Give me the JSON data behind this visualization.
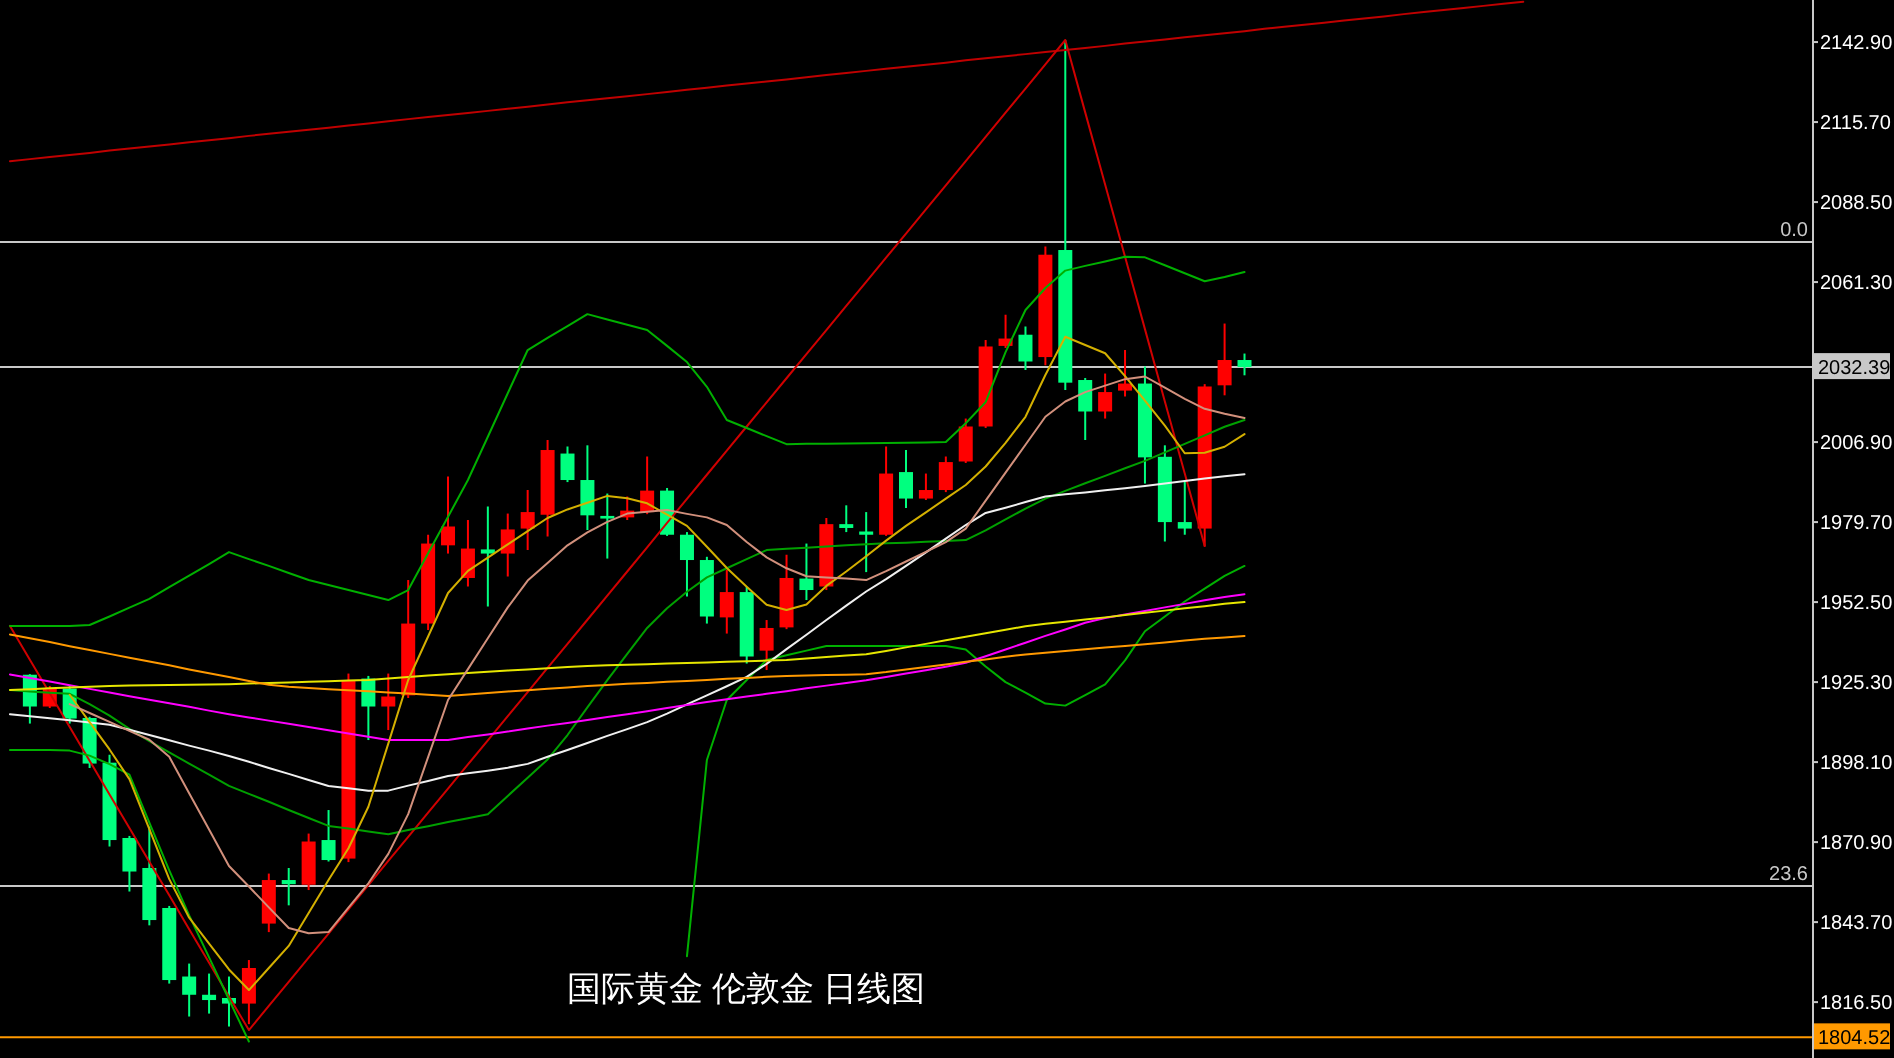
{
  "chart_data": {
    "type": "candlestick",
    "title": "国际黄金 伦敦金 日线图",
    "categories": [
      null,
      null,
      null,
      null,
      null,
      null,
      null,
      null,
      null,
      null,
      null,
      null,
      null,
      null,
      null,
      null,
      null,
      null,
      null,
      null,
      null,
      null,
      null,
      null,
      null,
      null,
      null,
      null,
      null,
      null,
      null,
      null,
      null,
      null,
      null,
      null,
      null,
      null,
      null,
      null,
      null,
      null,
      null,
      null,
      null,
      null,
      null,
      null,
      null,
      null,
      null,
      null,
      null,
      null,
      null,
      null,
      null,
      null,
      null,
      null,
      null,
      null,
      null,
      null,
      null,
      null,
      null,
      null,
      null,
      null,
      null,
      null,
      null,
      null,
      null,
      null,
      null,
      null,
      null,
      null,
      null,
      null,
      null,
      null,
      null,
      null,
      null,
      null,
      null,
      null,
      null
    ],
    "annotations": [
      {
        "text": "0.0",
        "y": 2074.9
      },
      {
        "text": "23.6",
        "y": 1856.0
      }
    ],
    "ohlc": [
      null,
      [
        1927.8,
        1928.0,
        1911.2,
        1917.0
      ],
      [
        1917.0,
        1924.0,
        1916.5,
        1923.3
      ],
      [
        1923.1,
        1924.0,
        1911.2,
        1912.9
      ],
      [
        1913.1,
        1913.5,
        1896.1,
        1897.6
      ],
      [
        1897.9,
        1900.6,
        1869.4,
        1871.6
      ],
      [
        1872.3,
        1873.0,
        1854.1,
        1860.9
      ],
      [
        1862.1,
        1876.2,
        1842.6,
        1844.4
      ],
      [
        1848.5,
        1849.2,
        1822.8,
        1824.0
      ],
      [
        1825.2,
        1829.6,
        1811.6,
        1819.0
      ],
      [
        1819.0,
        1826.2,
        1812.6,
        1817.2
      ],
      [
        1817.9,
        1825.2,
        1808.2,
        1816.0
      ],
      [
        1816.0,
        1830.8,
        1809.0,
        1828.1
      ],
      [
        1843.2,
        1860.2,
        1840.3,
        1858.0
      ],
      [
        1858.0,
        1862.1,
        1849.4,
        1856.6
      ],
      [
        1856.4,
        1873.8,
        1854.6,
        1871.1
      ],
      [
        1871.6,
        1881.8,
        1864.3,
        1864.8
      ],
      [
        1865.3,
        1928.2,
        1864.1,
        1926.0
      ],
      [
        1926.5,
        1927.4,
        1905.6,
        1917.0
      ],
      [
        1917.0,
        1928.2,
        1909.0,
        1920.4
      ],
      [
        1920.8,
        1960.0,
        1919.9,
        1945.2
      ],
      [
        1945.2,
        1975.4,
        1943.0,
        1972.4
      ],
      [
        1971.8,
        1995.2,
        1969.0,
        1978.2
      ],
      [
        1960.7,
        1980.4,
        1957.8,
        1970.7
      ],
      [
        1970.4,
        1985.0,
        1951.0,
        1969.0
      ],
      [
        1969.0,
        1982.6,
        1961.2,
        1977.2
      ],
      [
        1977.5,
        1990.6,
        1970.2,
        1983.1
      ],
      [
        1982.2,
        2007.6,
        1974.8,
        2004.2
      ],
      [
        2003.0,
        2005.4,
        1993.3,
        1994.0
      ],
      [
        1994.0,
        2005.8,
        1977.0,
        1982.0
      ],
      [
        1981.8,
        1989.4,
        1967.3,
        1980.9
      ],
      [
        1981.3,
        1988.4,
        1980.4,
        1983.6
      ],
      [
        1983.1,
        2002.0,
        1982.4,
        1990.4
      ],
      [
        1990.4,
        1991.3,
        1975.0,
        1975.4
      ],
      [
        1975.4,
        1976.3,
        1954.4,
        1966.8
      ],
      [
        1966.8,
        1967.9,
        1945.2,
        1947.6
      ],
      [
        1947.3,
        1963.4,
        1941.8,
        1955.9
      ],
      [
        1955.9,
        1957.8,
        1931.6,
        1934.0
      ],
      [
        1936.0,
        1946.4,
        1929.4,
        1943.7
      ],
      [
        1943.9,
        1968.6,
        1943.3,
        1960.7
      ],
      [
        1960.5,
        1972.4,
        1953.2,
        1956.6
      ],
      [
        1957.8,
        1981.1,
        1956.6,
        1979.0
      ],
      [
        1979.0,
        1985.4,
        1976.3,
        1977.7
      ],
      [
        1976.5,
        1983.1,
        1962.7,
        1975.4
      ],
      [
        1975.4,
        2005.4,
        1975.0,
        1996.2
      ],
      [
        1996.7,
        2004.2,
        1984.5,
        1987.7
      ],
      [
        1987.7,
        1996.2,
        1987.2,
        1990.6
      ],
      [
        1990.6,
        2002.0,
        1989.9,
        2000.1
      ],
      [
        2000.3,
        2014.9,
        1999.8,
        2012.2
      ],
      [
        2012.2,
        2041.6,
        2011.7,
        2039.4
      ],
      [
        2039.6,
        2050.2,
        2038.9,
        2042.1
      ],
      [
        2043.4,
        2046.2,
        2031.4,
        2034.3
      ],
      [
        2035.8,
        2073.4,
        2033.0,
        2070.6
      ],
      [
        2072.2,
        2143.6,
        2024.6,
        2027.1
      ],
      [
        2028.0,
        2028.7,
        2007.6,
        2017.3
      ],
      [
        2017.3,
        2030.2,
        2014.9,
        2023.9
      ],
      [
        2024.4,
        2038.2,
        2022.4,
        2026.8
      ],
      [
        2026.8,
        2032.6,
        1992.8,
        2001.7
      ],
      [
        2001.9,
        2005.8,
        1973.1,
        1979.7
      ],
      [
        1979.7,
        1994.0,
        1975.4,
        1977.5
      ],
      [
        1977.5,
        2026.6,
        1971.4,
        2025.8
      ],
      [
        2026.2,
        2047.2,
        2022.8,
        2034.8
      ],
      [
        2034.8,
        2037.0,
        2029.6,
        2032.4
      ],
      null,
      null,
      null,
      null,
      null,
      null,
      null,
      null,
      null,
      null,
      null,
      null,
      null,
      null,
      null,
      null,
      null,
      null,
      null,
      null,
      null,
      null,
      null,
      null,
      null,
      null,
      null,
      null
    ],
    "colors": [
      null,
      "#00ff7f",
      "#ff0000",
      "#00ff7f",
      "#00ff7f",
      "#00ff7f",
      "#00ff7f",
      "#00ff7f",
      "#00ff7f",
      "#00ff7f",
      "#00ff7f",
      "#00ff7f",
      "#ff0000",
      "#ff0000",
      "#00ff7f",
      "#ff0000",
      "#00ff7f",
      "#ff0000",
      "#00ff7f",
      "#ff0000",
      "#ff0000",
      "#ff0000",
      "#ff0000",
      "#ff0000",
      "#00ff7f",
      "#ff0000",
      "#ff0000",
      "#ff0000",
      "#00ff7f",
      "#00ff7f",
      "#00ff7f",
      "#ff0000",
      "#ff0000",
      "#00ff7f",
      "#00ff7f",
      "#00ff7f",
      "#ff0000",
      "#00ff7f",
      "#ff0000",
      "#ff0000",
      "#00ff7f",
      "#ff0000",
      "#00ff7f",
      "#00ff7f",
      "#ff0000",
      "#00ff7f",
      "#ff0000",
      "#ff0000",
      "#ff0000",
      "#ff0000",
      "#ff0000",
      "#00ff7f",
      "#ff0000",
      "#00ff7f",
      "#00ff7f",
      "#ff0000",
      "#ff0000",
      "#00ff7f",
      "#00ff7f",
      "#00ff7f",
      "#ff0000",
      "#ff0000",
      "#00ff7f",
      null,
      null,
      null,
      null,
      null,
      null,
      null,
      null,
      null,
      null,
      null,
      null,
      null,
      null,
      null,
      null,
      null,
      null,
      null,
      null,
      null,
      null,
      null,
      null,
      null,
      null,
      null,
      null
    ],
    "series": [
      {
        "type": "line",
        "color": "#c00000",
        "values": [
          2102.4,
          2103.1,
          2103.8,
          2104.5,
          2105.2,
          2106.0,
          2106.7,
          2107.4,
          2108.1,
          2108.8,
          2109.5,
          2110.2,
          2111.0,
          2111.7,
          2112.4,
          2113.1,
          2113.8,
          2114.5,
          2115.2,
          2116.0,
          2116.7,
          2117.4,
          2118.1,
          2118.8,
          2119.5,
          2120.2,
          2120.9,
          2121.7,
          2122.4,
          2123.1,
          2123.8,
          2124.5,
          2125.2,
          2125.9,
          2126.7,
          2127.4,
          2128.1,
          2128.8,
          2129.5,
          2130.2,
          2130.9,
          2131.7,
          2132.4,
          2133.1,
          2133.8,
          2134.5,
          2135.2,
          2135.9,
          2136.7,
          2137.4,
          2138.1,
          2138.8,
          2139.5,
          2140.2,
          2140.9,
          2141.6,
          2142.4,
          2143.1,
          2143.8,
          2144.5,
          2145.2,
          2145.9,
          2146.6,
          2147.4,
          2148.1,
          2148.8,
          2149.5,
          2150.2,
          2150.9,
          2151.6,
          2152.4,
          2153.1,
          2153.8,
          2154.5,
          2155.2,
          2155.9,
          2156.6,
          null,
          null,
          null,
          null,
          null,
          null,
          null,
          null,
          null,
          null,
          null,
          null,
          null,
          null
        ]
      },
      {
        "type": "line",
        "color": "#d00000",
        "values": [
          1944.4,
          1932.9,
          1921.5,
          1910.0,
          1898.6,
          1887.1,
          1875.7,
          1864.2,
          1852.8,
          1841.3,
          1829.9,
          1818.4,
          1807.0,
          1815.2,
          1823.4,
          1831.6,
          1839.8,
          1848.0,
          1856.3,
          1864.5,
          1872.7,
          1880.9,
          1889.1,
          1897.3,
          1905.5,
          1913.7,
          1921.9,
          1930.1,
          1938.3,
          1946.5,
          1954.7,
          1962.9,
          1971.1,
          1979.4,
          1987.6,
          1995.8,
          2004.0,
          2012.2,
          2020.4,
          2028.6,
          2036.8,
          2045.0,
          2053.2,
          2061.4,
          2069.6,
          2077.8,
          2086.0,
          2094.2,
          2102.4,
          2110.7,
          2118.9,
          2127.1,
          2135.3,
          2143.6,
          2119.0,
          2094.5,
          2069.9,
          2045.3,
          2020.7,
          1996.2,
          1971.6,
          null,
          null,
          null,
          null,
          null,
          null,
          null,
          null,
          null,
          null,
          null,
          null,
          null,
          null,
          null,
          null,
          null,
          null,
          null,
          null,
          null,
          null,
          null,
          null,
          null,
          null,
          null,
          null,
          null,
          null
        ]
      },
      {
        "type": "line",
        "color": "#00b000",
        "values": [
          1944.4,
          1944.4,
          1944.4,
          1944.4,
          1944.7,
          1947.6,
          1950.6,
          1953.6,
          1957.6,
          1961.5,
          1965.4,
          1969.5,
          1967.1,
          1964.8,
          1962.4,
          1960.0,
          1958.3,
          1956.6,
          1954.9,
          1953.2,
          1956.6,
          1969.1,
          1981.5,
          1994.0,
          2008.7,
          2023.5,
          2038.2,
          2042.3,
          2046.3,
          2050.4,
          2048.6,
          2046.8,
          2045.0,
          2039.6,
          2034.1,
          2025.7,
          2014.4,
          2011.7,
          2008.9,
          2006.2,
          2006.3,
          2006.3,
          2006.4,
          2006.5,
          2006.6,
          2006.7,
          2006.8,
          2006.9,
          2013.3,
          2020.5,
          2037.5,
          2051.8,
          2059.3,
          2065.2,
          2066.8,
          2068.3,
          2069.9,
          2069.7,
          2067.0,
          2064.3,
          2061.6,
          2063.0,
          2064.7,
          null,
          null,
          null,
          null,
          null,
          null,
          null,
          null,
          null,
          null,
          null,
          null,
          null,
          null,
          null,
          null,
          null,
          null,
          null,
          null,
          null,
          null,
          null,
          null,
          null,
          null,
          null,
          null
        ]
      },
      {
        "type": "line",
        "color": "#00a000",
        "values": [
          1922.6,
          1922.1,
          1921.7,
          1921.3,
          1917.8,
          1913.9,
          1909.4,
          1905.2,
          1901.4,
          1897.6,
          1893.8,
          1890.0,
          1887.3,
          1884.6,
          1881.8,
          1879.1,
          1876.4,
          1875.5,
          1874.5,
          1873.6,
          1875.0,
          1876.3,
          1877.7,
          1879.0,
          1880.4,
          1886.6,
          1892.8,
          1899.0,
          1907.3,
          1916.7,
          1926.0,
          1934.9,
          1943.7,
          1950.4,
          1956.0,
          1960.9,
          1964.0,
          1967.1,
          1970.2,
          1970.6,
          1971.0,
          1971.4,
          1971.8,
          1972.2,
          1972.5,
          1972.7,
          1973.0,
          1973.3,
          1973.6,
          1976.9,
          1980.6,
          1984.3,
          1987.7,
          1990.3,
          1992.9,
          1995.4,
          1998.0,
          2000.5,
          2003.4,
          2006.3,
          2009.2,
          2012.1,
          2014.4,
          null,
          null,
          null,
          null,
          null,
          null,
          null,
          null,
          null,
          null,
          null,
          null,
          null,
          null,
          null,
          null,
          null,
          null,
          null,
          null,
          null,
          null,
          null,
          null,
          null,
          null,
          null,
          null
        ]
      },
      {
        "type": "line",
        "color": "#00b000",
        "values": [
          1902.2,
          1902.2,
          1902.2,
          1902.0,
          1900.3,
          1897.4,
          1893.8,
          1877.5,
          1861.3,
          1846.0,
          1831.7,
          1817.4,
          1803.1,
          null,
          null,
          null,
          null,
          null,
          null,
          null,
          null,
          null,
          null,
          null,
          null,
          null,
          null,
          null,
          null,
          null,
          null,
          null,
          null,
          null,
          1832.1,
          1898.8,
          1919.2,
          1926.0,
          1932.8,
          1934.4,
          1936.0,
          1937.6,
          1937.6,
          1937.6,
          1937.6,
          1937.6,
          1937.6,
          1937.6,
          1936.4,
          1930.6,
          1925.3,
          1921.7,
          1918.0,
          1917.3,
          1920.9,
          1924.5,
          1932.7,
          1942.6,
          1947.6,
          1952.7,
          1957.1,
          1961.4,
          1964.8,
          null,
          null,
          null,
          null,
          null,
          null,
          null,
          null,
          null,
          null,
          null,
          null,
          null,
          null,
          null,
          null,
          null,
          null,
          null,
          null,
          null,
          null,
          null,
          null,
          null,
          null,
          null,
          null
        ]
      },
      {
        "type": "line",
        "color": "#f0f0f0",
        "values": [
          1914.4,
          1913.7,
          1913.0,
          1912.3,
          1911.6,
          1910.8,
          1909.1,
          1907.3,
          1905.5,
          1903.7,
          1902.0,
          1900.2,
          1898.2,
          1896.1,
          1894.1,
          1892.0,
          1890.0,
          1889.2,
          1888.4,
          1888.4,
          1890.1,
          1891.7,
          1893.4,
          1894.3,
          1895.2,
          1896.2,
          1897.5,
          1899.9,
          1902.2,
          1904.6,
          1907.0,
          1909.3,
          1911.7,
          1914.6,
          1917.7,
          1920.8,
          1923.9,
          1927.1,
          1931.5,
          1936.5,
          1941.4,
          1946.4,
          1951.3,
          1956.1,
          1960.3,
          1964.8,
          1969.4,
          1974.1,
          1978.7,
          1982.8,
          1984.6,
          1986.5,
          1988.4,
          1989.2,
          1989.8,
          1990.5,
          1991.2,
          1992.0,
          1992.8,
          1993.7,
          1994.5,
          1995.3,
          1996.0,
          null,
          null,
          null,
          null,
          null,
          null,
          null,
          null,
          null,
          null,
          null,
          null,
          null,
          null,
          null,
          null,
          null,
          null,
          null,
          null,
          null,
          null,
          null,
          null,
          null,
          null,
          null,
          null
        ]
      },
      {
        "type": "line",
        "color": "#ff00ff",
        "values": [
          1927.9,
          1926.7,
          1925.5,
          1924.2,
          1923.0,
          1921.8,
          1920.5,
          1919.3,
          1918.1,
          1916.9,
          1915.6,
          1914.4,
          1913.3,
          1912.2,
          1911.1,
          1910.0,
          1908.9,
          1907.8,
          1906.7,
          1905.6,
          1905.6,
          1905.6,
          1905.6,
          1906.6,
          1907.5,
          1908.5,
          1909.5,
          1910.5,
          1911.4,
          1912.4,
          1913.4,
          1914.4,
          1915.4,
          1916.5,
          1917.5,
          1918.5,
          1919.5,
          1920.4,
          1921.3,
          1922.2,
          1923.2,
          1924.1,
          1925.0,
          1925.9,
          1927.0,
          1928.2,
          1929.3,
          1930.5,
          1931.9,
          1934.1,
          1936.4,
          1938.7,
          1941.0,
          1943.2,
          1945.5,
          1947.1,
          1948.3,
          1949.5,
          1950.7,
          1951.9,
          1953.1,
          1954.2,
          1955.2,
          null,
          null,
          null,
          null,
          null,
          null,
          null,
          null,
          null,
          null,
          null,
          null,
          null,
          null,
          null,
          null,
          null,
          null,
          null,
          null,
          null,
          null,
          null,
          null,
          null,
          null,
          null,
          null
        ]
      },
      {
        "type": "line",
        "color": "#e6e600",
        "values": [
          1922.6,
          1922.9,
          1923.2,
          1923.5,
          1923.7,
          1924.0,
          1924.1,
          1924.2,
          1924.3,
          1924.4,
          1924.5,
          1924.6,
          1924.8,
          1925.0,
          1925.2,
          1925.4,
          1925.6,
          1925.8,
          1926.0,
          1926.5,
          1927.0,
          1927.5,
          1928.0,
          1928.4,
          1928.8,
          1929.2,
          1929.6,
          1930.0,
          1930.4,
          1930.8,
          1931.0,
          1931.2,
          1931.4,
          1931.6,
          1931.8,
          1932.0,
          1932.2,
          1932.4,
          1932.6,
          1932.8,
          1933.3,
          1933.8,
          1934.3,
          1934.8,
          1935.9,
          1937.1,
          1938.3,
          1939.5,
          1940.7,
          1941.9,
          1943.1,
          1944.3,
          1945.1,
          1945.8,
          1946.6,
          1947.3,
          1948.1,
          1948.9,
          1949.6,
          1950.4,
          1951.1,
          1951.9,
          1952.5,
          null,
          null,
          null,
          null,
          null,
          null,
          null,
          null,
          null,
          null,
          null,
          null,
          null,
          null,
          null,
          null,
          null,
          null,
          null,
          null,
          null,
          null,
          null,
          null,
          null,
          null,
          null,
          null
        ]
      },
      {
        "type": "line",
        "color": "#ff9900",
        "values": [
          1941.5,
          1940.2,
          1938.9,
          1937.5,
          1936.2,
          1934.9,
          1933.6,
          1932.3,
          1931.0,
          1929.6,
          1928.3,
          1927.0,
          1925.7,
          1924.4,
          1923.7,
          1923.3,
          1922.9,
          1922.5,
          1922.2,
          1921.8,
          1921.4,
          1921.0,
          1920.6,
          1921.1,
          1921.6,
          1922.1,
          1922.5,
          1923.0,
          1923.5,
          1924.0,
          1924.3,
          1924.7,
          1925.0,
          1925.4,
          1925.7,
          1926.0,
          1926.4,
          1926.7,
          1927.1,
          1927.4,
          1927.5,
          1927.7,
          1927.8,
          1928.0,
          1928.7,
          1929.6,
          1930.4,
          1931.3,
          1932.2,
          1933.0,
          1933.9,
          1934.7,
          1935.3,
          1935.9,
          1936.5,
          1937.1,
          1937.6,
          1938.2,
          1938.8,
          1939.4,
          1940.0,
          1940.5,
          1941.0,
          null,
          null,
          null,
          null,
          null,
          null,
          null,
          null,
          null,
          null,
          null,
          null,
          null,
          null,
          null,
          null,
          null,
          null,
          null,
          null,
          null,
          null,
          null,
          null,
          null,
          null,
          null,
          null
        ]
      },
      {
        "type": "line",
        "color": "#d4b000",
        "values": [
          null,
          null,
          null,
          1921.0,
          1911.7,
          1902.4,
          1892.3,
          1875.3,
          1858.3,
          1845.2,
          1836.4,
          1827.6,
          1820.6,
          1828.1,
          1835.6,
          1846.8,
          1858.0,
          1868.8,
          1882.9,
          1904.4,
          1926.0,
          1940.8,
          1955.6,
          1963.1,
          1967.6,
          1972.1,
          1976.6,
          1981.1,
          1984.0,
          1986.3,
          1988.6,
          1987.8,
          1986.1,
          1982.2,
          1978.4,
          1971.3,
          1964.1,
          1957.7,
          1951.6,
          1949.8,
          1951.7,
          1958.0,
          1962.9,
          1968.1,
          1973.4,
          1978.4,
          1983.0,
          1987.7,
          1992.3,
          1998.6,
          2006.6,
          2015.5,
          2029.7,
          2042.7,
          2039.9,
          2037.1,
          2029.3,
          2021.0,
          2012.5,
          2003.1,
          2003.3,
          2005.3,
          2009.6,
          null,
          null,
          null,
          null,
          null,
          null,
          null,
          null,
          null,
          null,
          null,
          null,
          null,
          null,
          null,
          null,
          null,
          null,
          null,
          null,
          null,
          null,
          null,
          null,
          null,
          null,
          null,
          null
        ]
      },
      {
        "type": "line",
        "color": "#d2907c",
        "values": [
          null,
          null,
          null,
          1917.8,
          1914.8,
          1911.8,
          1908.7,
          1905.7,
          1899.9,
          1887.5,
          1875.2,
          1862.8,
          1855.8,
          1848.7,
          1841.7,
          1839.9,
          1840.3,
          1848.6,
          1856.9,
          1866.9,
          1880.4,
          1899.8,
          1919.2,
          1929.7,
          1940.2,
          1950.7,
          1959.8,
          1965.8,
          1971.8,
          1976.2,
          1979.8,
          1982.6,
          1983.2,
          1983.8,
          1982.5,
          1981.3,
          1978.7,
          1972.9,
          1967.7,
          1964.0,
          1961.3,
          1960.9,
          1960.5,
          1960.0,
          1963.0,
          1966.3,
          1969.6,
          1972.9,
          1977.5,
          1987.0,
          1996.5,
          2006.0,
          2015.5,
          2020.7,
          2023.9,
          2026.1,
          2028.3,
          2029.2,
          2025.4,
          2021.6,
          2018.2,
          2016.5,
          2015.1,
          null,
          null,
          null,
          null,
          null,
          null,
          null,
          null,
          null,
          null,
          null,
          null,
          null,
          null,
          null,
          null,
          null,
          null,
          null,
          null,
          null,
          null,
          null,
          null,
          null,
          null,
          null,
          null
        ]
      }
    ],
    "ylim": [
      1797.5,
      2157.2
    ],
    "yticks": [
      {
        "value": 2142.9,
        "label": "2142.90"
      },
      {
        "value": 2115.7,
        "label": "2115.70"
      },
      {
        "value": 2088.5,
        "label": "2088.50"
      },
      {
        "value": 2061.3,
        "label": "2061.30"
      },
      {
        "value": 2006.9,
        "label": "2006.90"
      },
      {
        "value": 1979.7,
        "label": "1979.70"
      },
      {
        "value": 1952.5,
        "label": "1952.50"
      },
      {
        "value": 1925.3,
        "label": "1925.30"
      },
      {
        "value": 1898.1,
        "label": "1898.10"
      },
      {
        "value": 1870.9,
        "label": "1870.90"
      },
      {
        "value": 1843.7,
        "label": "1843.70"
      },
      {
        "value": 1816.5,
        "label": "1816.50"
      }
    ],
    "ref_lines": [
      {
        "axis": "y",
        "value": 2074.9
      },
      {
        "axis": "y",
        "value": 1856.0
      },
      {
        "axis": "y",
        "value": 2032.39,
        "label": "2032.39",
        "color": "#c8c8c8"
      },
      {
        "axis": "y",
        "value": 1804.52,
        "label": "1804.52",
        "color": "#ff9900"
      }
    ],
    "tick_labels": "y"
  }
}
